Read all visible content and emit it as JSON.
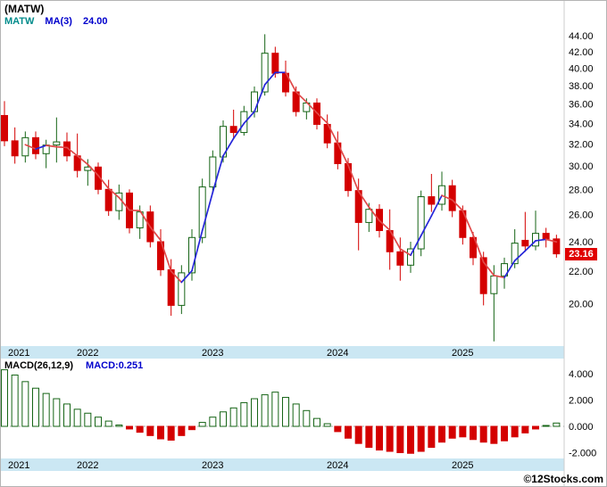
{
  "header": {
    "symbol_title": "(MATW)",
    "legend_symbol": "MATW",
    "legend_ma": "MA(3)",
    "legend_ma_value": "24.00"
  },
  "price_flag": {
    "text": "23.16"
  },
  "macd_header": {
    "label": "MACD(26,12,9)",
    "value": "MACD:0.251"
  },
  "watermark": {
    "text": "©12Stocks.com"
  },
  "colors": {
    "up_candle": "#156415",
    "down_candle": "#d40000",
    "ma_up_line": "#2626d9",
    "ma_down_line": "#e04848",
    "axis_band": "#cbe7f3",
    "price_flag_bg": "#e00000",
    "text": "#000000",
    "grid_dash": "#aaaaaa"
  },
  "chart_data": [
    {
      "type": "candlestick",
      "title": "(MATW)",
      "interval": "monthly",
      "y_scale": "log",
      "ylim": [
        17.7,
        47.0
      ],
      "y_ticks": [
        44,
        42,
        40,
        38,
        36,
        34,
        32,
        30,
        28,
        26,
        24,
        22,
        20
      ],
      "x_labels": [
        "2021",
        "2022",
        "2023",
        "2024",
        "2025"
      ],
      "ma_period": 3,
      "ma_last_value": 24.0,
      "last_price": 23.16,
      "legend_position": "top-left",
      "grid": false,
      "candles": [
        [
          34.8,
          36.3,
          31.8,
          32.3
        ],
        [
          32.3,
          33.6,
          30.2,
          30.9
        ],
        [
          30.9,
          33.2,
          30.3,
          32.6
        ],
        [
          32.6,
          33.2,
          30.6,
          31.1
        ],
        [
          31.1,
          32.4,
          29.8,
          31.9
        ],
        [
          31.9,
          34.6,
          30.3,
          32.2
        ],
        [
          32.2,
          33.1,
          30.4,
          30.9
        ],
        [
          30.9,
          33.0,
          29.0,
          29.6
        ],
        [
          29.6,
          30.6,
          28.3,
          29.9
        ],
        [
          29.9,
          30.3,
          27.6,
          28.0
        ],
        [
          28.0,
          28.8,
          25.9,
          26.3
        ],
        [
          26.3,
          28.4,
          25.6,
          27.7
        ],
        [
          27.7,
          28.0,
          24.6,
          25.0
        ],
        [
          25.0,
          26.7,
          24.2,
          26.2
        ],
        [
          26.2,
          26.7,
          23.6,
          24.0
        ],
        [
          24.0,
          24.9,
          21.7,
          22.1
        ],
        [
          22.1,
          22.8,
          19.3,
          19.9
        ],
        [
          19.9,
          22.4,
          19.4,
          21.9
        ],
        [
          21.9,
          24.9,
          21.4,
          24.3
        ],
        [
          24.3,
          28.9,
          23.9,
          28.2
        ],
        [
          28.2,
          31.4,
          27.8,
          30.8
        ],
        [
          30.8,
          34.3,
          30.3,
          33.7
        ],
        [
          33.7,
          35.4,
          32.6,
          33.1
        ],
        [
          33.1,
          35.8,
          32.8,
          35.2
        ],
        [
          35.2,
          37.9,
          34.6,
          37.3
        ],
        [
          37.3,
          44.2,
          36.9,
          41.8
        ],
        [
          41.8,
          42.6,
          38.9,
          39.4
        ],
        [
          39.4,
          40.9,
          36.8,
          37.3
        ],
        [
          37.3,
          37.9,
          34.7,
          35.2
        ],
        [
          35.2,
          36.6,
          34.4,
          36.1
        ],
        [
          36.1,
          36.6,
          33.4,
          33.9
        ],
        [
          33.9,
          34.9,
          31.6,
          32.1
        ],
        [
          32.1,
          33.2,
          29.7,
          30.2
        ],
        [
          30.2,
          30.7,
          27.4,
          27.9
        ],
        [
          27.9,
          28.9,
          23.4,
          25.4
        ],
        [
          25.4,
          26.9,
          24.7,
          26.4
        ],
        [
          26.4,
          26.8,
          24.3,
          24.8
        ],
        [
          24.8,
          26.4,
          22.1,
          23.3
        ],
        [
          23.3,
          24.3,
          21.4,
          22.4
        ],
        [
          22.4,
          24.0,
          21.9,
          23.5
        ],
        [
          23.5,
          27.9,
          23.0,
          27.4
        ],
        [
          27.4,
          29.3,
          26.2,
          26.8
        ],
        [
          26.8,
          29.5,
          26.3,
          28.3
        ],
        [
          28.3,
          28.8,
          25.8,
          26.3
        ],
        [
          26.3,
          26.7,
          23.8,
          24.3
        ],
        [
          24.3,
          24.7,
          22.4,
          22.9
        ],
        [
          22.9,
          23.3,
          19.9,
          20.6
        ],
        [
          20.6,
          22.4,
          17.9,
          21.7
        ],
        [
          21.7,
          22.9,
          20.9,
          22.5
        ],
        [
          22.5,
          24.9,
          22.2,
          23.9
        ],
        [
          24.1,
          26.2,
          23.3,
          23.7
        ],
        [
          23.7,
          26.3,
          23.4,
          24.6
        ],
        [
          24.6,
          25.0,
          23.6,
          24.2
        ],
        [
          24.2,
          24.5,
          22.9,
          23.16
        ]
      ]
    },
    {
      "type": "bar",
      "title": "MACD(26,12,9)",
      "last_value": 0.251,
      "y_ticks": [
        4,
        2,
        0,
        -2
      ],
      "ylim": [
        -2.4,
        5.0
      ],
      "x_labels": [
        "2021",
        "2022",
        "2023",
        "2024",
        "2025"
      ],
      "zero_line": "dashed",
      "values": [
        4.3,
        3.9,
        3.4,
        2.9,
        2.5,
        2.1,
        1.7,
        1.3,
        1.0,
        0.7,
        0.4,
        0.1,
        -0.2,
        -0.45,
        -0.7,
        -0.95,
        -1.05,
        -0.7,
        -0.25,
        0.3,
        0.7,
        1.1,
        1.4,
        1.8,
        2.1,
        2.4,
        2.6,
        2.2,
        1.7,
        1.2,
        0.6,
        0.2,
        -0.4,
        -0.9,
        -1.3,
        -1.6,
        -1.8,
        -1.9,
        -2.0,
        -2.05,
        -1.9,
        -1.6,
        -1.2,
        -0.9,
        -0.8,
        -1.0,
        -1.2,
        -1.3,
        -1.1,
        -0.8,
        -0.5,
        -0.2,
        0.05,
        0.251
      ]
    }
  ]
}
